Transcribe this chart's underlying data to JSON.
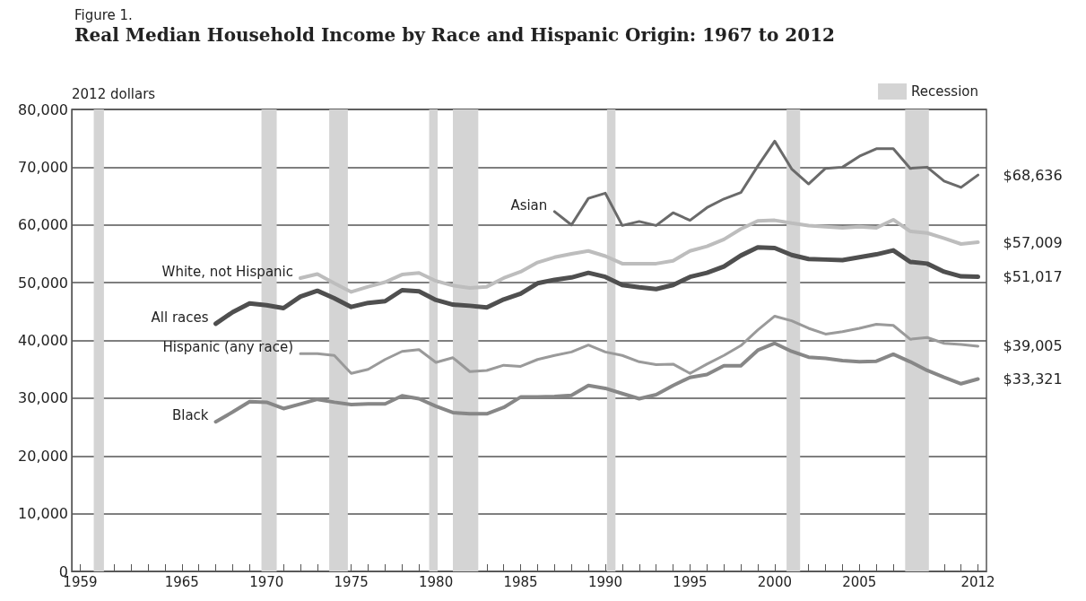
{
  "chart_data": {
    "type": "line",
    "subtitle": "Figure 1.",
    "title": "Real Median Household Income by Race and Hispanic Origin: 1967 to 2012",
    "ylabel": "2012 dollars",
    "xlim": [
      1958.5,
      2012.5
    ],
    "xticks": [
      1959,
      {
        "value": 1960,
        "label": null
      },
      {
        "value": 1961,
        "label": null
      },
      {
        "value": 1962,
        "label": null
      },
      {
        "value": 1963,
        "label": null
      },
      {
        "value": 1964,
        "label": null
      },
      1965,
      {
        "value": 1966,
        "label": null
      },
      {
        "value": 1967,
        "label": null
      },
      {
        "value": 1968,
        "label": null
      },
      {
        "value": 1969,
        "label": null
      },
      1970,
      {
        "value": 1971,
        "label": null
      },
      {
        "value": 1972,
        "label": null
      },
      {
        "value": 1973,
        "label": null
      },
      {
        "value": 1974,
        "label": null
      },
      1975,
      {
        "value": 1976,
        "label": null
      },
      {
        "value": 1977,
        "label": null
      },
      {
        "value": 1978,
        "label": null
      },
      {
        "value": 1979,
        "label": null
      },
      1980,
      {
        "value": 1981,
        "label": null
      },
      {
        "value": 1982,
        "label": null
      },
      {
        "value": 1983,
        "label": null
      },
      {
        "value": 1984,
        "label": null
      },
      1985,
      {
        "value": 1986,
        "label": null
      },
      {
        "value": 1987,
        "label": null
      },
      {
        "value": 1988,
        "label": null
      },
      {
        "value": 1989,
        "label": null
      },
      1990,
      {
        "value": 1991,
        "label": null
      },
      {
        "value": 1992,
        "label": null
      },
      {
        "value": 1993,
        "label": null
      },
      {
        "value": 1994,
        "label": null
      },
      1995,
      {
        "value": 1996,
        "label": null
      },
      {
        "value": 1997,
        "label": null
      },
      {
        "value": 1998,
        "label": null
      },
      {
        "value": 1999,
        "label": null
      },
      2000,
      {
        "value": 2001,
        "label": null
      },
      {
        "value": 2002,
        "label": null
      },
      {
        "value": 2003,
        "label": null
      },
      {
        "value": 2004,
        "label": null
      },
      2005,
      {
        "value": 2006,
        "label": null
      },
      {
        "value": 2007,
        "label": null
      },
      {
        "value": 2008,
        "label": null
      },
      {
        "value": 2009,
        "label": null
      },
      {
        "value": 2010,
        "label": null
      },
      {
        "value": 2011,
        "label": null
      },
      2012
    ],
    "ylim": [
      0,
      80000
    ],
    "yticks": [
      0,
      {
        "value": 10000,
        "label": "10,000"
      },
      {
        "value": 20000,
        "label": "20,000"
      },
      {
        "value": 30000,
        "label": "30,000"
      },
      {
        "value": 40000,
        "label": "40,000"
      },
      {
        "value": 50000,
        "label": "50,000"
      },
      {
        "value": 60000,
        "label": "60,000"
      },
      {
        "value": 70000,
        "label": "70,000"
      },
      {
        "value": 80000,
        "label": "80,000"
      }
    ],
    "grid": "y",
    "legend": "top right",
    "marker": "none",
    "line_style": "solid",
    "series": [
      {
        "name": "Asian",
        "color": "#6a6a6a",
        "value_labels": [
          null,
          null,
          null,
          null,
          null,
          null,
          null,
          null,
          null,
          null,
          null,
          null,
          null,
          null,
          null,
          null,
          null,
          null,
          null,
          null,
          null,
          null,
          null,
          null,
          null,
          "$68,636"
        ],
        "x": [
          1987,
          1988,
          1989,
          1990,
          1991,
          1992,
          1993,
          1994,
          1995,
          1996,
          1997,
          1998,
          1999,
          2000,
          2001,
          2002,
          2003,
          2004,
          2005,
          2006,
          2007,
          2008,
          2009,
          2010,
          2011,
          2012
        ],
        "values": [
          62300,
          60000,
          64600,
          65500,
          59900,
          60600,
          59900,
          62100,
          60800,
          63000,
          64500,
          65600,
          70200,
          74500,
          69700,
          67100,
          69800,
          70000,
          71900,
          73200,
          73200,
          69800,
          70000,
          67600,
          66500,
          68636
        ]
      },
      {
        "name": "White, not Hispanic",
        "color": "#bdbdbd",
        "value_labels": [
          null,
          null,
          null,
          null,
          null,
          null,
          null,
          null,
          null,
          null,
          null,
          null,
          null,
          null,
          null,
          null,
          null,
          null,
          null,
          null,
          null,
          null,
          null,
          null,
          null,
          null,
          null,
          null,
          null,
          null,
          null,
          null,
          null,
          null,
          null,
          null,
          null,
          null,
          null,
          null,
          "$57,009"
        ],
        "x": [
          1972,
          1973,
          1974,
          1975,
          1976,
          1977,
          1978,
          1979,
          1980,
          1981,
          1982,
          1983,
          1984,
          1985,
          1986,
          1987,
          1988,
          1989,
          1990,
          1991,
          1992,
          1993,
          1994,
          1995,
          1996,
          1997,
          1998,
          1999,
          2000,
          2001,
          2002,
          2003,
          2004,
          2005,
          2006,
          2007,
          2008,
          2009,
          2010,
          2011,
          2012
        ],
        "values": [
          50800,
          51500,
          49900,
          48400,
          49300,
          50100,
          51400,
          51700,
          50300,
          49500,
          49100,
          49300,
          50800,
          51900,
          53500,
          54400,
          55000,
          55500,
          54600,
          53300,
          53300,
          53300,
          53800,
          55500,
          56300,
          57500,
          59300,
          60700,
          60800,
          60300,
          59900,
          59700,
          59500,
          59700,
          59500,
          60900,
          58900,
          58600,
          57700,
          56700,
          57009
        ]
      },
      {
        "name": "All races",
        "color": "#4f4f4f",
        "value_labels": [
          null,
          null,
          null,
          null,
          null,
          null,
          null,
          null,
          null,
          null,
          null,
          null,
          null,
          null,
          null,
          null,
          null,
          null,
          null,
          null,
          null,
          null,
          null,
          null,
          null,
          null,
          null,
          null,
          null,
          null,
          null,
          null,
          null,
          null,
          null,
          null,
          null,
          null,
          null,
          null,
          null,
          null,
          null,
          null,
          null,
          "$51,017"
        ],
        "x": [
          1967,
          1968,
          1969,
          1970,
          1971,
          1972,
          1973,
          1974,
          1975,
          1976,
          1977,
          1978,
          1979,
          1980,
          1981,
          1982,
          1983,
          1984,
          1985,
          1986,
          1987,
          1988,
          1989,
          1990,
          1991,
          1992,
          1993,
          1994,
          1995,
          1996,
          1997,
          1998,
          1999,
          2000,
          2001,
          2002,
          2003,
          2004,
          2005,
          2006,
          2007,
          2008,
          2009,
          2010,
          2011,
          2012
        ],
        "values": [
          42900,
          44900,
          46400,
          46100,
          45600,
          47600,
          48600,
          47300,
          45800,
          46500,
          46800,
          48700,
          48500,
          47000,
          46200,
          46000,
          45700,
          47100,
          48100,
          49900,
          50500,
          50900,
          51700,
          51000,
          49600,
          49200,
          48900,
          49600,
          51000,
          51700,
          52800,
          54700,
          56100,
          56000,
          54800,
          54100,
          54000,
          53900,
          54400,
          54900,
          55600,
          53600,
          53300,
          51900,
          51100,
          51017
        ]
      },
      {
        "name": "Hispanic (any race)",
        "color": "#9a9a9a",
        "value_labels": [
          null,
          null,
          null,
          null,
          null,
          null,
          null,
          null,
          null,
          null,
          null,
          null,
          null,
          null,
          null,
          null,
          null,
          null,
          null,
          null,
          null,
          null,
          null,
          null,
          null,
          null,
          null,
          null,
          null,
          null,
          null,
          null,
          null,
          null,
          null,
          null,
          null,
          null,
          null,
          null,
          "$39,005"
        ],
        "x": [
          1972,
          1973,
          1974,
          1975,
          1976,
          1977,
          1978,
          1979,
          1980,
          1981,
          1982,
          1983,
          1984,
          1985,
          1986,
          1987,
          1988,
          1989,
          1990,
          1991,
          1992,
          1993,
          1994,
          1995,
          1996,
          1997,
          1998,
          1999,
          2000,
          2001,
          2002,
          2003,
          2004,
          2005,
          2006,
          2007,
          2008,
          2009,
          2010,
          2011,
          2012
        ],
        "values": [
          37700,
          37700,
          37400,
          34300,
          35000,
          36700,
          38100,
          38400,
          36200,
          37000,
          34600,
          34800,
          35700,
          35500,
          36700,
          37400,
          38000,
          39200,
          38000,
          37400,
          36300,
          35800,
          35900,
          34300,
          35900,
          37400,
          39100,
          41800,
          44200,
          43400,
          42100,
          41100,
          41500,
          42100,
          42800,
          42600,
          40200,
          40500,
          39500,
          39300,
          39005
        ]
      },
      {
        "name": "Black",
        "color": "#878787",
        "value_labels": [
          null,
          null,
          null,
          null,
          null,
          null,
          null,
          null,
          null,
          null,
          null,
          null,
          null,
          null,
          null,
          null,
          null,
          null,
          null,
          null,
          null,
          null,
          null,
          null,
          null,
          null,
          null,
          null,
          null,
          null,
          null,
          null,
          null,
          null,
          null,
          null,
          null,
          null,
          null,
          null,
          null,
          null,
          null,
          null,
          null,
          "$33,321"
        ],
        "x": [
          1967,
          1968,
          1969,
          1970,
          1971,
          1972,
          1973,
          1974,
          1975,
          1976,
          1977,
          1978,
          1979,
          1980,
          1981,
          1982,
          1983,
          1984,
          1985,
          1986,
          1987,
          1988,
          1989,
          1990,
          1991,
          1992,
          1993,
          1994,
          1995,
          1996,
          1997,
          1998,
          1999,
          2000,
          2001,
          2002,
          2003,
          2004,
          2005,
          2006,
          2007,
          2008,
          2009,
          2010,
          2011,
          2012
        ],
        "values": [
          25900,
          27600,
          29400,
          29300,
          28200,
          29000,
          29800,
          29300,
          28900,
          29000,
          29000,
          30400,
          29900,
          28600,
          27500,
          27300,
          27300,
          28400,
          30200,
          30200,
          30300,
          30500,
          32200,
          31700,
          30800,
          29900,
          30600,
          32200,
          33600,
          34100,
          35600,
          35600,
          38300,
          39500,
          38100,
          37100,
          36900,
          36500,
          36300,
          36400,
          37600,
          36300,
          34800,
          33600,
          32500,
          33321
        ]
      }
    ],
    "bands": [
      {
        "axis": "x",
        "from": 1959.8,
        "to": 1960.4,
        "label": "Recession",
        "color": "#d4d4d4"
      },
      {
        "axis": "x",
        "from": 1969.7,
        "to": 1970.6,
        "color": "#d4d4d4"
      },
      {
        "axis": "x",
        "from": 1973.7,
        "to": 1974.8,
        "color": "#d4d4d4"
      },
      {
        "axis": "x",
        "from": 1979.6,
        "to": 1980.1,
        "color": "#d4d4d4"
      },
      {
        "axis": "x",
        "from": 1981.0,
        "to": 1982.5,
        "color": "#d4d4d4"
      },
      {
        "axis": "x",
        "from": 1990.1,
        "to": 1990.6,
        "color": "#d4d4d4"
      },
      {
        "axis": "x",
        "from": 2000.7,
        "to": 2001.5,
        "color": "#d4d4d4"
      },
      {
        "axis": "x",
        "from": 2007.7,
        "to": 2009.1,
        "color": "#d4d4d4"
      }
    ]
  }
}
